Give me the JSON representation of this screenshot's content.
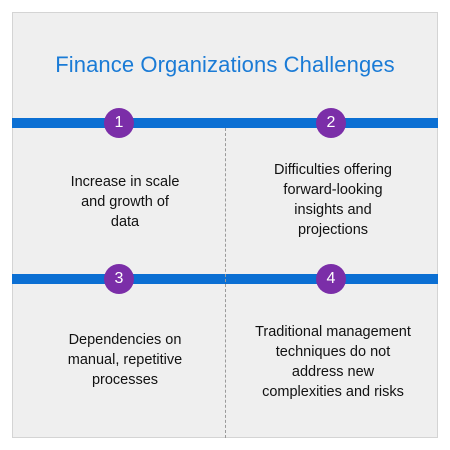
{
  "title": "Finance Organizations Challenges",
  "challenges": [
    {
      "number": "1",
      "text": "Increase in scale\nand growth of\ndata"
    },
    {
      "number": "2",
      "text": "Difficulties offering\nforward-looking\ninsights and\nprojections"
    },
    {
      "number": "3",
      "text": "Dependencies on\nmanual, repetitive\nprocesses"
    },
    {
      "number": "4",
      "text": "Traditional management\ntechniques do not\naddress new\ncomplexities and risks"
    }
  ],
  "colors": {
    "title": "#1a7bd6",
    "band": "#0b6fd3",
    "badge": "#7b2ea8",
    "background": "#efefef"
  }
}
